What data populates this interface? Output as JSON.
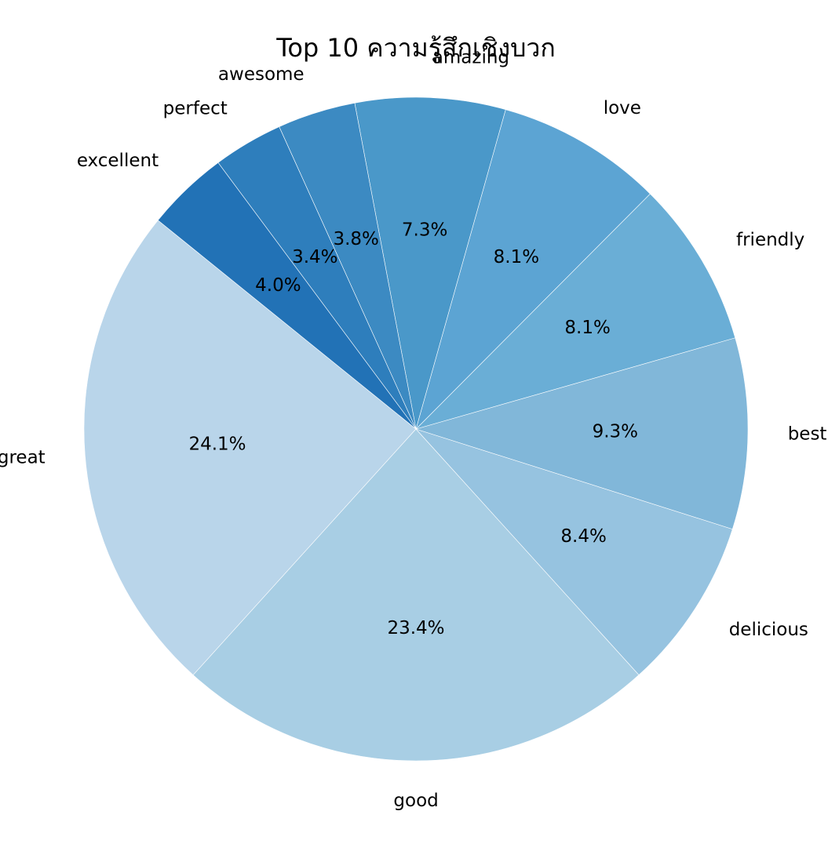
{
  "chart_data": {
    "type": "pie",
    "title": "Top 10 ความรู้สึกเชิงบวก",
    "categories": [
      "great",
      "good",
      "delicious",
      "best",
      "friendly",
      "love",
      "amazing",
      "awesome",
      "perfect",
      "excellent"
    ],
    "values": [
      24.1,
      23.4,
      8.4,
      9.3,
      8.1,
      8.1,
      7.3,
      3.8,
      3.4,
      4.0
    ],
    "percent_labels": [
      "24.1%",
      "23.4%",
      "8.4%",
      "9.3%",
      "8.1%",
      "8.1%",
      "7.3%",
      "3.8%",
      "3.4%",
      "4.0%"
    ],
    "colors": [
      "#b9d5ea",
      "#a8cee4",
      "#96c3e0",
      "#81b7d9",
      "#6aaed6",
      "#5ca4d3",
      "#4a98c9",
      "#3c8ac2",
      "#2e7ebc",
      "#2272b6"
    ],
    "start_angle_deg": 141,
    "direction": "counterclockwise",
    "legend": "none"
  }
}
